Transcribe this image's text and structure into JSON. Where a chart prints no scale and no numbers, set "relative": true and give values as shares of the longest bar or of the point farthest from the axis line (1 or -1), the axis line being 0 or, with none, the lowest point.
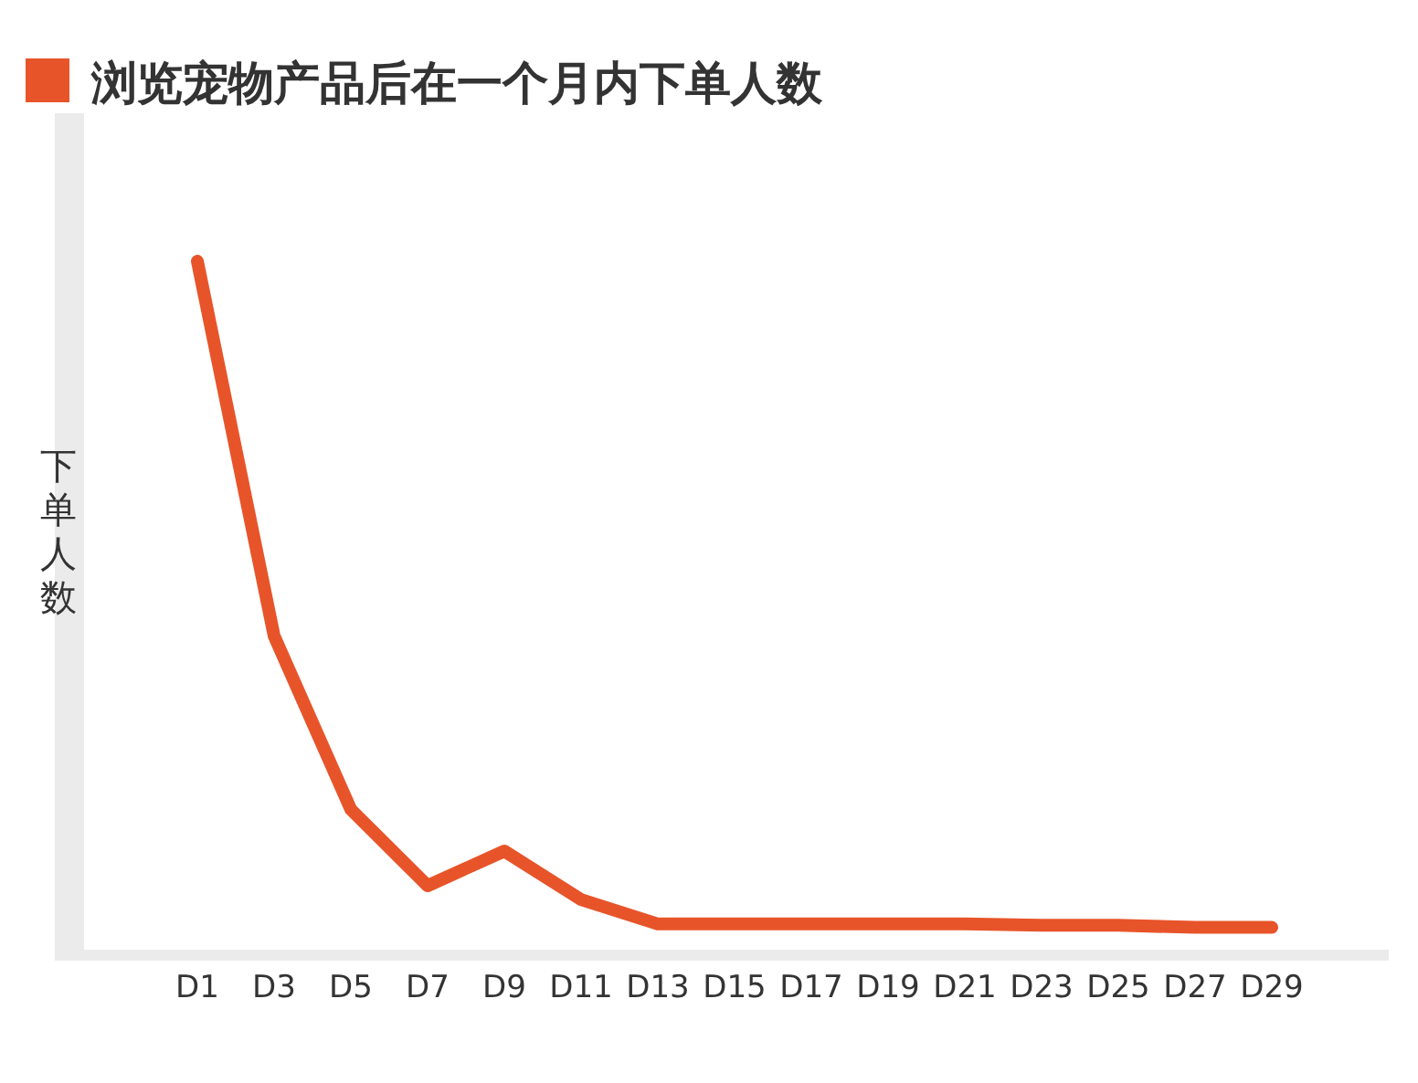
{
  "chart_data": {
    "type": "line",
    "title": "浏览宠物产品后在一个月内下单人数",
    "ylabel": "下单人数",
    "relative": true,
    "color": "#e8542a",
    "categories": [
      "D1",
      "D3",
      "D5",
      "D7",
      "D9",
      "D11",
      "D13",
      "D15",
      "D17",
      "D19",
      "D21",
      "D23",
      "D25",
      "D27",
      "D29"
    ],
    "values": [
      1,
      0.46,
      0.21,
      0.1,
      0.15,
      0.08,
      0.045,
      0.045,
      0.045,
      0.045,
      0.045,
      0.043,
      0.043,
      0.04,
      0.04
    ]
  }
}
